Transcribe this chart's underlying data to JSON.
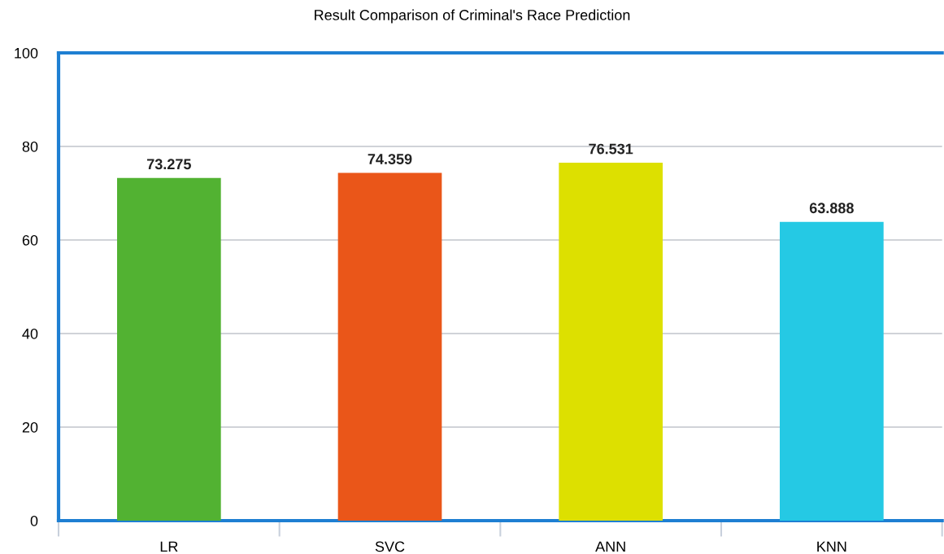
{
  "chart_data": {
    "type": "bar",
    "title": "Result Comparison of Criminal's Race Prediction",
    "categories": [
      "LR",
      "SVC",
      "ANN",
      "KNN"
    ],
    "values": [
      73.275,
      74.359,
      76.531,
      63.888
    ],
    "colors": [
      "#52b232",
      "#ea5619",
      "#dde000",
      "#25c9e4"
    ],
    "data_labels": true,
    "ylim": [
      0,
      100
    ],
    "yticks": [
      0,
      20,
      40,
      60,
      80,
      100
    ],
    "grid": "y",
    "legend": false
  }
}
